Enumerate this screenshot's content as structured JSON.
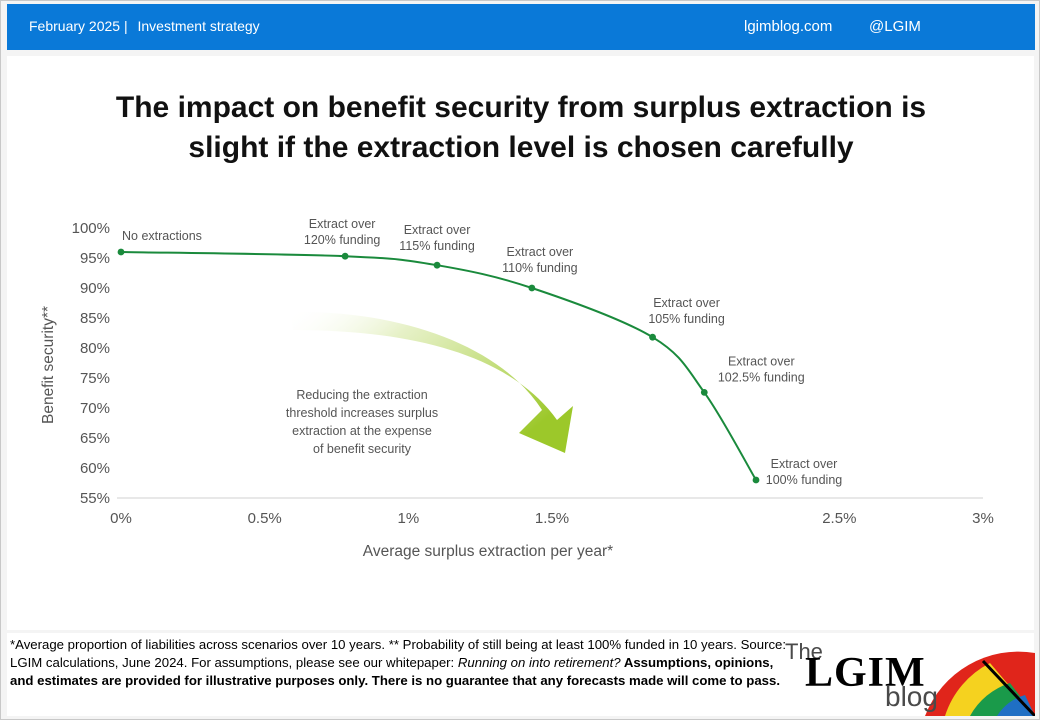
{
  "header": {
    "date": "February 2025",
    "separator": "|",
    "category": "Investment strategy",
    "site": "lgimblog.com",
    "handle": "@LGIM"
  },
  "title": {
    "line1": "The impact on benefit security from surplus extraction is",
    "line2": "slight if the extraction level is chosen carefully"
  },
  "chart_data": {
    "type": "line",
    "title": "The impact on benefit security from surplus extraction is slight if the extraction level is chosen carefully",
    "xlabel": "Average surplus extraction per year*",
    "ylabel": "Benefit security**",
    "xlim": [
      0,
      3
    ],
    "ylim": [
      55,
      100
    ],
    "x_ticks": [
      0,
      0.5,
      1,
      1.5,
      2,
      2.5,
      3
    ],
    "x_tick_labels": [
      "0%",
      "0.5%",
      "1%",
      "1.5%",
      "2.5%",
      "3%"
    ],
    "x_tick_label_positions": [
      0,
      0.5,
      1,
      1.5,
      2.5,
      3
    ],
    "y_ticks": [
      100,
      95,
      90,
      85,
      80,
      75,
      70,
      65,
      60,
      55
    ],
    "y_tick_labels": [
      "100%",
      "95%",
      "90%",
      "85%",
      "80%",
      "75%",
      "70%",
      "65%",
      "60%",
      "55%"
    ],
    "grid": false,
    "line_color": "#1a8a3c",
    "points": [
      {
        "x": 0.0,
        "y": 96.0,
        "label": [
          "No extractions"
        ]
      },
      {
        "x": 0.78,
        "y": 95.3,
        "label": [
          "Extract over",
          "120% funding"
        ]
      },
      {
        "x": 1.1,
        "y": 93.8,
        "label": [
          "Extract over",
          "115% funding"
        ]
      },
      {
        "x": 1.43,
        "y": 90.0,
        "label": [
          "Extract over",
          "110% funding"
        ]
      },
      {
        "x": 1.85,
        "y": 81.8,
        "label": [
          "Extract over",
          "105% funding"
        ]
      },
      {
        "x": 2.03,
        "y": 72.6,
        "label": [
          "Extract over",
          "102.5% funding"
        ]
      },
      {
        "x": 2.21,
        "y": 58.0,
        "label": [
          "Extract over",
          "100% funding"
        ]
      }
    ],
    "annotation": {
      "lines": [
        "Reducing the extraction",
        "threshold increases surplus",
        "extraction at the expense",
        "of benefit security"
      ],
      "arrow_color": "#9cc82a"
    }
  },
  "footnote": {
    "text1": "*Average proportion of liabilities across scenarios over 10 years. ** Probability of still being at least 100% funded in 10 years. Source: LGIM  calculations, June 2024. For assumptions, please see our whitepaper: ",
    "italic": "Running on into retirement?",
    "bold": " Assumptions,  opinions, and estimates are provided for illustrative purposes only. There is no guarantee that any forecasts made will come to pass."
  },
  "logo": {
    "the": "The",
    "lgim": "LGIM",
    "blog": "blog"
  }
}
